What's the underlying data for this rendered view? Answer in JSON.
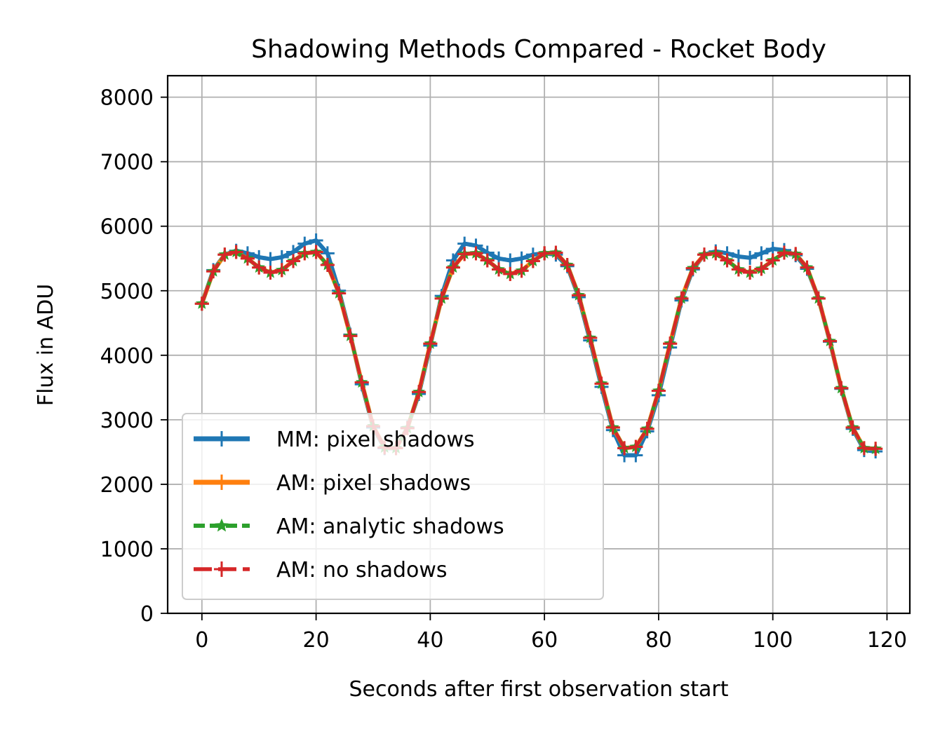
{
  "chart_data": {
    "type": "line",
    "title": "Shadowing Methods Compared - Rocket Body",
    "xlabel": "Seconds after first observation start",
    "ylabel": "Flux in ADU",
    "xlim": [
      -6,
      124
    ],
    "ylim": [
      0,
      8333
    ],
    "xticks": [
      0,
      20,
      40,
      60,
      80,
      100,
      120
    ],
    "yticks": [
      0,
      1000,
      2000,
      3000,
      4000,
      5000,
      6000,
      7000,
      8000
    ],
    "grid": true,
    "legend_position": "lower-left",
    "series": [
      {
        "name": "MM: pixel shadows",
        "color": "#1f77b4",
        "marker": "plus",
        "x": [
          0,
          2,
          4,
          6,
          8,
          10,
          12,
          14,
          16,
          18,
          20,
          22,
          24,
          26,
          28,
          30,
          32,
          34,
          36,
          38,
          40,
          42,
          44,
          46,
          48,
          50,
          52,
          54,
          56,
          58,
          60,
          62,
          64,
          66,
          68,
          70,
          72,
          74,
          76,
          78,
          80,
          82,
          84,
          86,
          88,
          90,
          92,
          94,
          96,
          98,
          100,
          102,
          104,
          106,
          108,
          110,
          112,
          114,
          116,
          118
        ],
        "y": [
          4800,
          5320,
          5560,
          5620,
          5580,
          5520,
          5490,
          5520,
          5600,
          5730,
          5780,
          5580,
          5000,
          4320,
          3550,
          2880,
          2560,
          2560,
          2880,
          3400,
          4150,
          4920,
          5470,
          5730,
          5700,
          5590,
          5500,
          5470,
          5500,
          5560,
          5580,
          5560,
          5380,
          4900,
          4230,
          3510,
          2840,
          2450,
          2450,
          2820,
          3380,
          4120,
          4850,
          5330,
          5560,
          5610,
          5580,
          5530,
          5510,
          5580,
          5650,
          5630,
          5550,
          5340,
          4880,
          4210,
          3480,
          2860,
          2530,
          2510
        ]
      },
      {
        "name": "AM: pixel shadows",
        "color": "#ff7f0e",
        "marker": "plus",
        "x": [
          0,
          2,
          4,
          6,
          8,
          10,
          12,
          14,
          16,
          18,
          20,
          22,
          24,
          26,
          28,
          30,
          32,
          34,
          36,
          38,
          40,
          42,
          44,
          46,
          48,
          50,
          52,
          54,
          56,
          58,
          60,
          62,
          64,
          66,
          68,
          70,
          72,
          74,
          76,
          78,
          80,
          82,
          84,
          86,
          88,
          90,
          92,
          94,
          96,
          98,
          100,
          102,
          104,
          106,
          108,
          110,
          112,
          114,
          116,
          118
        ],
        "y": [
          4800,
          5300,
          5560,
          5600,
          5500,
          5360,
          5280,
          5320,
          5460,
          5580,
          5600,
          5400,
          4960,
          4300,
          3580,
          2900,
          2570,
          2560,
          2870,
          3430,
          4180,
          4880,
          5360,
          5570,
          5580,
          5470,
          5330,
          5260,
          5310,
          5460,
          5580,
          5590,
          5400,
          4930,
          4270,
          3560,
          2880,
          2560,
          2580,
          2860,
          3450,
          4180,
          4880,
          5350,
          5560,
          5580,
          5470,
          5330,
          5280,
          5340,
          5470,
          5590,
          5570,
          5360,
          4880,
          4220,
          3490,
          2880,
          2560,
          2550
        ]
      },
      {
        "name": "AM: analytic shadows",
        "color": "#2ca02c",
        "marker": "star",
        "x": [
          0,
          2,
          4,
          6,
          8,
          10,
          12,
          14,
          16,
          18,
          20,
          22,
          24,
          26,
          28,
          30,
          32,
          34,
          36,
          38,
          40,
          42,
          44,
          46,
          48,
          50,
          52,
          54,
          56,
          58,
          60,
          62,
          64,
          66,
          68,
          70,
          72,
          74,
          76,
          78,
          80,
          82,
          84,
          86,
          88,
          90,
          92,
          94,
          96,
          98,
          100,
          102,
          104,
          106,
          108,
          110,
          112,
          114,
          116,
          118
        ],
        "y": [
          4800,
          5300,
          5560,
          5600,
          5500,
          5360,
          5280,
          5320,
          5460,
          5580,
          5600,
          5400,
          4960,
          4300,
          3580,
          2900,
          2570,
          2560,
          2870,
          3430,
          4180,
          4880,
          5360,
          5570,
          5580,
          5470,
          5330,
          5260,
          5310,
          5460,
          5580,
          5590,
          5400,
          4930,
          4270,
          3560,
          2880,
          2560,
          2580,
          2860,
          3450,
          4180,
          4880,
          5350,
          5560,
          5580,
          5470,
          5330,
          5280,
          5340,
          5470,
          5590,
          5570,
          5360,
          4880,
          4220,
          3490,
          2880,
          2560,
          2550
        ]
      },
      {
        "name": "AM: no shadows",
        "color": "#d62728",
        "marker": "plus",
        "x": [
          0,
          2,
          4,
          6,
          8,
          10,
          12,
          14,
          16,
          18,
          20,
          22,
          24,
          26,
          28,
          30,
          32,
          34,
          36,
          38,
          40,
          42,
          44,
          46,
          48,
          50,
          52,
          54,
          56,
          58,
          60,
          62,
          64,
          66,
          68,
          70,
          72,
          74,
          76,
          78,
          80,
          82,
          84,
          86,
          88,
          90,
          92,
          94,
          96,
          98,
          100,
          102,
          104,
          106,
          108,
          110,
          112,
          114,
          116,
          118
        ],
        "y": [
          4800,
          5300,
          5560,
          5600,
          5500,
          5360,
          5280,
          5320,
          5460,
          5580,
          5600,
          5400,
          4960,
          4300,
          3580,
          2900,
          2570,
          2560,
          2870,
          3430,
          4180,
          4880,
          5360,
          5570,
          5580,
          5470,
          5330,
          5260,
          5310,
          5460,
          5580,
          5590,
          5400,
          4930,
          4270,
          3560,
          2880,
          2560,
          2580,
          2860,
          3450,
          4180,
          4880,
          5350,
          5560,
          5580,
          5470,
          5330,
          5280,
          5340,
          5470,
          5590,
          5570,
          5360,
          4880,
          4220,
          3490,
          2880,
          2560,
          2550
        ]
      }
    ]
  }
}
